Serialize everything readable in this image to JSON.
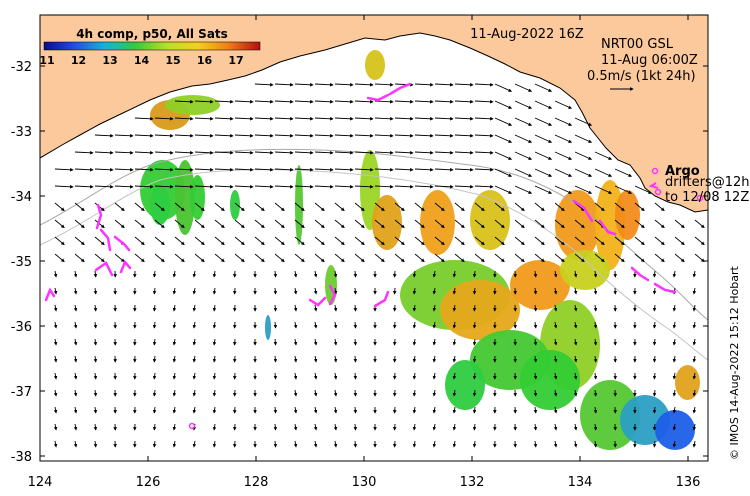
{
  "map": {
    "header_date": "11-Aug-2022 16Z",
    "colorbar": {
      "title": "4h comp, p50, All Sats",
      "ticks": [
        "11",
        "12",
        "13",
        "14",
        "15",
        "16",
        "17"
      ]
    },
    "current_info": {
      "line1": "NRT00 GSL",
      "line2": "11-Aug 06:00Z",
      "line3": "0.5m/s (1kt 24h)"
    },
    "legend": {
      "argo": "Argo",
      "drifters_line1": "drifters@12h",
      "drifters_line2": "to 12/08 12Z"
    },
    "credit": "© IMOS 14-Aug-2022 15:12 Hobart",
    "x_ticks": [
      "124",
      "126",
      "128",
      "130",
      "132",
      "134",
      "136"
    ],
    "y_ticks": [
      "-32",
      "-33",
      "-34",
      "-35",
      "-36",
      "-37",
      "-38"
    ],
    "colors": {
      "land": "#fbc99b",
      "argo": "#ff33ff",
      "drifter": "#ff33ff",
      "sst_cold": "#1d5fe8",
      "sst_mid": "#33cc33",
      "sst_warm": "#f28c1a"
    }
  }
}
